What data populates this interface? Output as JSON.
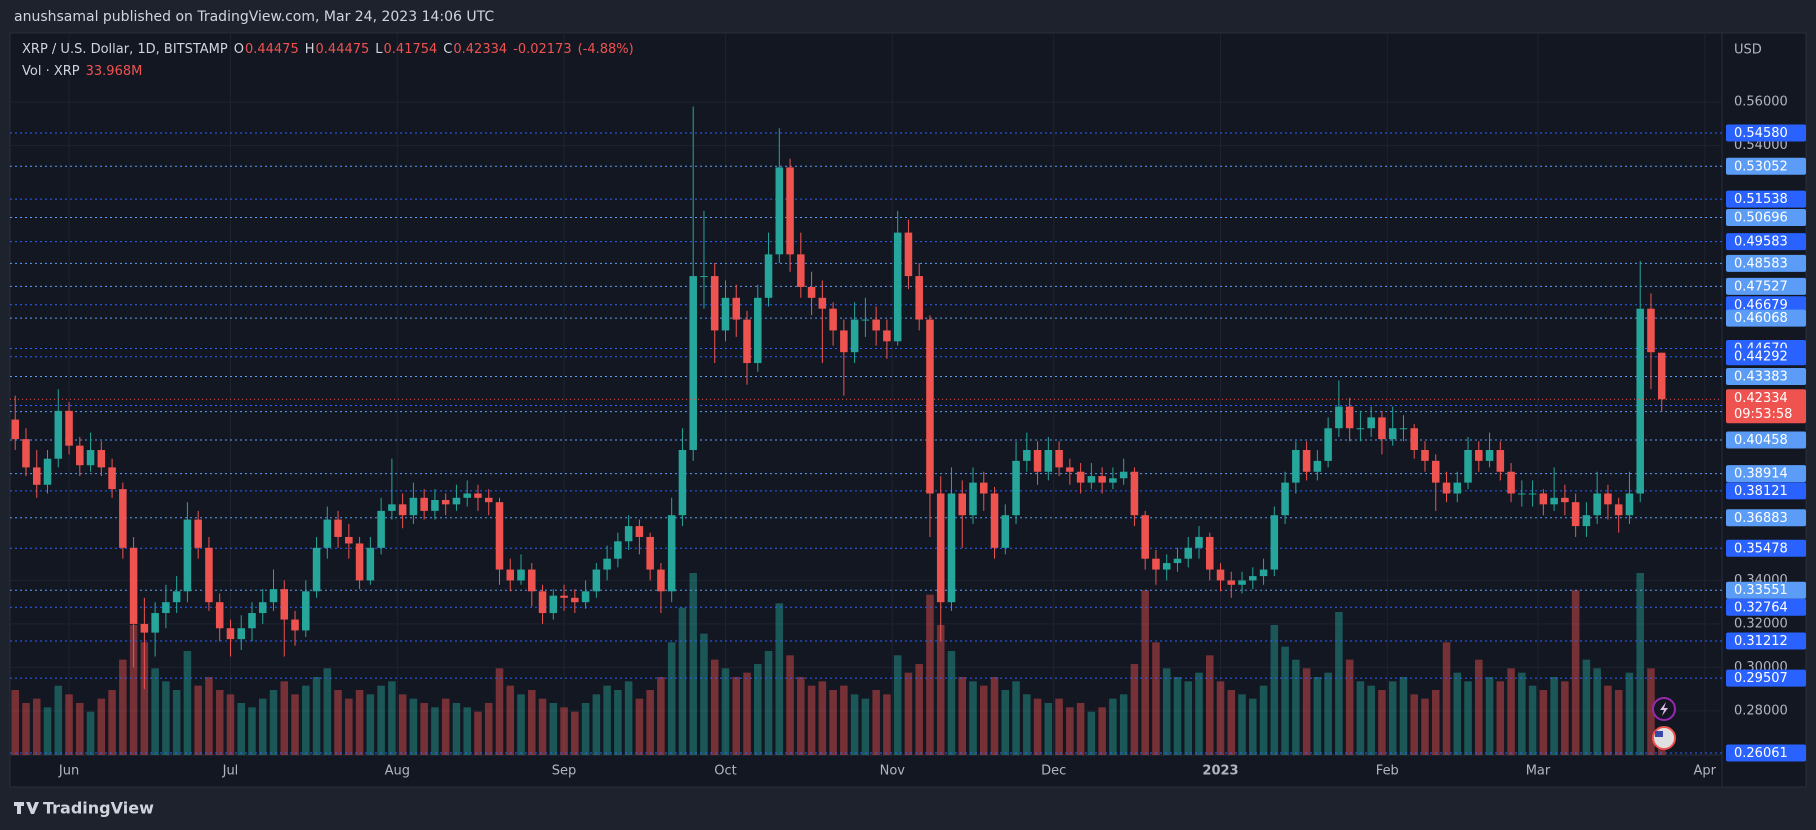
{
  "header": {
    "publisher": "anushsamal published on TradingView.com, Mar 24, 2023 14:06 UTC"
  },
  "footer": {
    "brand": "TradingView"
  },
  "chart_data": {
    "type": "candlestick",
    "legend": {
      "symbol": "XRP / U.S. Dollar, 1D, BITSTAMP",
      "open_label": "O",
      "open": 0.44475,
      "high_label": "H",
      "high": 0.44475,
      "low_label": "L",
      "low": 0.41754,
      "close_label": "C",
      "close": 0.42334,
      "change": -0.02173,
      "change_pct": {
        "value": -4.88,
        "label": "(-4.88%)"
      },
      "volume_label": "Vol · XRP",
      "volume": {
        "value": 33.968,
        "label": "33.968M"
      }
    },
    "currency": "USD",
    "last_price": 0.42334,
    "countdown": "09:53:58",
    "up_color": "#26a69a",
    "down_color": "#ef5350",
    "xlim": [
      -0.3,
      158.6
    ],
    "xticks": [
      {
        "value": 5,
        "label": "Jun"
      },
      {
        "value": 20,
        "label": "Jul"
      },
      {
        "value": 35.5,
        "label": "Aug"
      },
      {
        "value": 51,
        "label": "Sep"
      },
      {
        "value": 66,
        "label": "Oct"
      },
      {
        "value": 81.5,
        "label": "Nov"
      },
      {
        "value": 96.5,
        "label": "Dec"
      },
      {
        "value": 112,
        "label": "2023"
      },
      {
        "value": 127.5,
        "label": "Feb"
      },
      {
        "value": 141.5,
        "label": "Mar"
      },
      {
        "value": 157,
        "label": "Apr"
      }
    ],
    "ylim": [
      0.2597,
      0.5909
    ],
    "yticks": [
      {
        "value": 0.28,
        "label": "0.28000"
      },
      {
        "value": 0.3,
        "label": "0.30000"
      },
      {
        "value": 0.32,
        "label": "0.32000"
      },
      {
        "value": 0.34,
        "label": "0.34000"
      },
      {
        "value": 0.54,
        "label": "0.54000"
      },
      {
        "value": 0.56,
        "label": "0.56000"
      }
    ],
    "grid": true,
    "price_levels": [
      {
        "value": 0.5458,
        "label": "0.54580",
        "color": "#2962ff"
      },
      {
        "value": 0.53052,
        "label": "0.53052",
        "color": "#5b9cf6"
      },
      {
        "value": 0.51538,
        "label": "0.51538",
        "color": "#2962ff"
      },
      {
        "value": 0.50696,
        "label": "0.50696",
        "color": "#5b9cf6"
      },
      {
        "value": 0.49583,
        "label": "0.49583",
        "color": "#2962ff"
      },
      {
        "value": 0.48583,
        "label": "0.48583",
        "color": "#5b9cf6"
      },
      {
        "value": 0.47527,
        "label": "0.47527",
        "color": "#5b9cf6"
      },
      {
        "value": 0.46679,
        "label": "0.46679",
        "color": "#2962ff"
      },
      {
        "value": 0.46068,
        "label": "0.46068",
        "color": "#5b9cf6"
      },
      {
        "value": 0.4467,
        "label": "0.44670",
        "color": "#2962ff"
      },
      {
        "value": 0.44292,
        "label": "0.44292",
        "color": "#2962ff"
      },
      {
        "value": 0.43383,
        "label": "0.43383",
        "color": "#5b9cf6"
      },
      {
        "value": 0.42048,
        "label": "0.42048",
        "color": "#2962ff"
      },
      {
        "value": 0.41765,
        "label": "0.41765",
        "color": "#5b9cf6"
      },
      {
        "value": 0.40458,
        "label": "0.40458",
        "color": "#5b9cf6"
      },
      {
        "value": 0.38914,
        "label": "0.38914",
        "color": "#5b9cf6"
      },
      {
        "value": 0.38121,
        "label": "0.38121",
        "color": "#2962ff"
      },
      {
        "value": 0.36883,
        "label": "0.36883",
        "color": "#5b9cf6"
      },
      {
        "value": 0.35478,
        "label": "0.35478",
        "color": "#2962ff"
      },
      {
        "value": 0.33551,
        "label": "0.33551",
        "color": "#5b9cf6"
      },
      {
        "value": 0.32764,
        "label": "0.32764",
        "color": "#2962ff"
      },
      {
        "value": 0.31212,
        "label": "0.31212",
        "color": "#2962ff"
      },
      {
        "value": 0.29507,
        "label": "0.29507",
        "color": "#2962ff"
      },
      {
        "value": 0.26061,
        "label": "0.26061",
        "color": "#2962ff"
      }
    ],
    "candles": [
      [
        0.414,
        0.425,
        0.4,
        0.405
      ],
      [
        0.405,
        0.41,
        0.388,
        0.392
      ],
      [
        0.392,
        0.4,
        0.378,
        0.384
      ],
      [
        0.384,
        0.4,
        0.38,
        0.396
      ],
      [
        0.396,
        0.428,
        0.392,
        0.418
      ],
      [
        0.418,
        0.422,
        0.398,
        0.402
      ],
      [
        0.402,
        0.406,
        0.388,
        0.393
      ],
      [
        0.393,
        0.408,
        0.39,
        0.4
      ],
      [
        0.4,
        0.404,
        0.388,
        0.392
      ],
      [
        0.392,
        0.396,
        0.378,
        0.382
      ],
      [
        0.382,
        0.385,
        0.35,
        0.355
      ],
      [
        0.355,
        0.36,
        0.3,
        0.32
      ],
      [
        0.32,
        0.332,
        0.29,
        0.316
      ],
      [
        0.316,
        0.33,
        0.305,
        0.325
      ],
      [
        0.325,
        0.338,
        0.318,
        0.33
      ],
      [
        0.33,
        0.342,
        0.325,
        0.335
      ],
      [
        0.335,
        0.376,
        0.33,
        0.368
      ],
      [
        0.368,
        0.372,
        0.35,
        0.355
      ],
      [
        0.355,
        0.36,
        0.326,
        0.33
      ],
      [
        0.33,
        0.334,
        0.312,
        0.318
      ],
      [
        0.318,
        0.322,
        0.305,
        0.313
      ],
      [
        0.313,
        0.324,
        0.308,
        0.318
      ],
      [
        0.318,
        0.33,
        0.312,
        0.325
      ],
      [
        0.325,
        0.336,
        0.32,
        0.33
      ],
      [
        0.33,
        0.345,
        0.326,
        0.336
      ],
      [
        0.336,
        0.34,
        0.305,
        0.322
      ],
      [
        0.322,
        0.326,
        0.31,
        0.317
      ],
      [
        0.317,
        0.34,
        0.314,
        0.335
      ],
      [
        0.335,
        0.36,
        0.332,
        0.355
      ],
      [
        0.355,
        0.374,
        0.35,
        0.368
      ],
      [
        0.368,
        0.372,
        0.355,
        0.36
      ],
      [
        0.36,
        0.366,
        0.35,
        0.357
      ],
      [
        0.357,
        0.36,
        0.336,
        0.34
      ],
      [
        0.34,
        0.36,
        0.338,
        0.355
      ],
      [
        0.355,
        0.378,
        0.352,
        0.372
      ],
      [
        0.372,
        0.396,
        0.368,
        0.375
      ],
      [
        0.375,
        0.38,
        0.364,
        0.37
      ],
      [
        0.37,
        0.385,
        0.366,
        0.378
      ],
      [
        0.378,
        0.382,
        0.368,
        0.372
      ],
      [
        0.372,
        0.382,
        0.368,
        0.377
      ],
      [
        0.377,
        0.38,
        0.37,
        0.375
      ],
      [
        0.375,
        0.384,
        0.372,
        0.378
      ],
      [
        0.378,
        0.386,
        0.374,
        0.38
      ],
      [
        0.38,
        0.384,
        0.372,
        0.378
      ],
      [
        0.378,
        0.382,
        0.37,
        0.376
      ],
      [
        0.376,
        0.378,
        0.338,
        0.345
      ],
      [
        0.345,
        0.35,
        0.335,
        0.34
      ],
      [
        0.34,
        0.352,
        0.338,
        0.345
      ],
      [
        0.345,
        0.348,
        0.328,
        0.335
      ],
      [
        0.335,
        0.338,
        0.32,
        0.325
      ],
      [
        0.325,
        0.336,
        0.322,
        0.333
      ],
      [
        0.333,
        0.338,
        0.326,
        0.332
      ],
      [
        0.332,
        0.336,
        0.325,
        0.33
      ],
      [
        0.33,
        0.34,
        0.327,
        0.335
      ],
      [
        0.335,
        0.348,
        0.332,
        0.345
      ],
      [
        0.345,
        0.356,
        0.34,
        0.35
      ],
      [
        0.35,
        0.362,
        0.346,
        0.358
      ],
      [
        0.358,
        0.37,
        0.354,
        0.365
      ],
      [
        0.365,
        0.368,
        0.352,
        0.36
      ],
      [
        0.36,
        0.362,
        0.34,
        0.345
      ],
      [
        0.345,
        0.348,
        0.325,
        0.335
      ],
      [
        0.335,
        0.378,
        0.33,
        0.37
      ],
      [
        0.37,
        0.41,
        0.365,
        0.4
      ],
      [
        0.4,
        0.558,
        0.395,
        0.48
      ],
      [
        0.48,
        0.51,
        0.465,
        0.48
      ],
      [
        0.48,
        0.486,
        0.44,
        0.455
      ],
      [
        0.455,
        0.478,
        0.45,
        0.47
      ],
      [
        0.47,
        0.476,
        0.452,
        0.46
      ],
      [
        0.46,
        0.464,
        0.43,
        0.44
      ],
      [
        0.44,
        0.476,
        0.436,
        0.47
      ],
      [
        0.47,
        0.5,
        0.466,
        0.49
      ],
      [
        0.49,
        0.548,
        0.486,
        0.53
      ],
      [
        0.53,
        0.534,
        0.482,
        0.49
      ],
      [
        0.49,
        0.5,
        0.47,
        0.475
      ],
      [
        0.475,
        0.482,
        0.462,
        0.47
      ],
      [
        0.47,
        0.478,
        0.44,
        0.465
      ],
      [
        0.465,
        0.468,
        0.448,
        0.455
      ],
      [
        0.455,
        0.46,
        0.425,
        0.445
      ],
      [
        0.445,
        0.468,
        0.44,
        0.46
      ],
      [
        0.46,
        0.47,
        0.452,
        0.46
      ],
      [
        0.46,
        0.466,
        0.448,
        0.455
      ],
      [
        0.455,
        0.46,
        0.442,
        0.45
      ],
      [
        0.45,
        0.51,
        0.448,
        0.5
      ],
      [
        0.5,
        0.506,
        0.474,
        0.48
      ],
      [
        0.48,
        0.486,
        0.455,
        0.46
      ],
      [
        0.46,
        0.462,
        0.36,
        0.38
      ],
      [
        0.38,
        0.388,
        0.312,
        0.33
      ],
      [
        0.33,
        0.392,
        0.326,
        0.38
      ],
      [
        0.38,
        0.386,
        0.355,
        0.37
      ],
      [
        0.37,
        0.392,
        0.366,
        0.385
      ],
      [
        0.385,
        0.39,
        0.372,
        0.38
      ],
      [
        0.38,
        0.383,
        0.35,
        0.355
      ],
      [
        0.355,
        0.375,
        0.352,
        0.37
      ],
      [
        0.37,
        0.404,
        0.366,
        0.395
      ],
      [
        0.395,
        0.408,
        0.39,
        0.4
      ],
      [
        0.4,
        0.404,
        0.384,
        0.39
      ],
      [
        0.39,
        0.406,
        0.386,
        0.4
      ],
      [
        0.4,
        0.404,
        0.388,
        0.392
      ],
      [
        0.392,
        0.396,
        0.384,
        0.39
      ],
      [
        0.39,
        0.394,
        0.38,
        0.385
      ],
      [
        0.385,
        0.394,
        0.382,
        0.388
      ],
      [
        0.388,
        0.392,
        0.38,
        0.385
      ],
      [
        0.385,
        0.392,
        0.382,
        0.387
      ],
      [
        0.387,
        0.396,
        0.384,
        0.39
      ],
      [
        0.39,
        0.392,
        0.365,
        0.37
      ],
      [
        0.37,
        0.372,
        0.345,
        0.35
      ],
      [
        0.35,
        0.354,
        0.338,
        0.345
      ],
      [
        0.345,
        0.352,
        0.34,
        0.348
      ],
      [
        0.348,
        0.355,
        0.344,
        0.35
      ],
      [
        0.35,
        0.36,
        0.346,
        0.355
      ],
      [
        0.355,
        0.365,
        0.35,
        0.36
      ],
      [
        0.36,
        0.362,
        0.34,
        0.345
      ],
      [
        0.345,
        0.348,
        0.335,
        0.34
      ],
      [
        0.34,
        0.344,
        0.332,
        0.338
      ],
      [
        0.338,
        0.344,
        0.334,
        0.34
      ],
      [
        0.34,
        0.346,
        0.336,
        0.342
      ],
      [
        0.342,
        0.35,
        0.338,
        0.345
      ],
      [
        0.345,
        0.374,
        0.342,
        0.37
      ],
      [
        0.37,
        0.39,
        0.366,
        0.385
      ],
      [
        0.385,
        0.404,
        0.38,
        0.4
      ],
      [
        0.4,
        0.404,
        0.386,
        0.39
      ],
      [
        0.39,
        0.4,
        0.386,
        0.395
      ],
      [
        0.395,
        0.415,
        0.392,
        0.41
      ],
      [
        0.41,
        0.432,
        0.406,
        0.42
      ],
      [
        0.42,
        0.424,
        0.404,
        0.41
      ],
      [
        0.41,
        0.418,
        0.404,
        0.41
      ],
      [
        0.41,
        0.42,
        0.406,
        0.415
      ],
      [
        0.415,
        0.418,
        0.398,
        0.405
      ],
      [
        0.405,
        0.42,
        0.402,
        0.41
      ],
      [
        0.41,
        0.416,
        0.404,
        0.41
      ],
      [
        0.41,
        0.412,
        0.396,
        0.4
      ],
      [
        0.4,
        0.404,
        0.39,
        0.395
      ],
      [
        0.395,
        0.398,
        0.372,
        0.385
      ],
      [
        0.385,
        0.39,
        0.376,
        0.38
      ],
      [
        0.38,
        0.39,
        0.376,
        0.385
      ],
      [
        0.385,
        0.406,
        0.382,
        0.4
      ],
      [
        0.4,
        0.404,
        0.39,
        0.395
      ],
      [
        0.395,
        0.408,
        0.392,
        0.4
      ],
      [
        0.4,
        0.404,
        0.386,
        0.39
      ],
      [
        0.39,
        0.394,
        0.376,
        0.38
      ],
      [
        0.38,
        0.386,
        0.374,
        0.38
      ],
      [
        0.38,
        0.386,
        0.374,
        0.38
      ],
      [
        0.38,
        0.382,
        0.37,
        0.375
      ],
      [
        0.375,
        0.392,
        0.372,
        0.378
      ],
      [
        0.378,
        0.384,
        0.37,
        0.376
      ],
      [
        0.376,
        0.38,
        0.36,
        0.365
      ],
      [
        0.365,
        0.376,
        0.36,
        0.37
      ],
      [
        0.37,
        0.39,
        0.366,
        0.38
      ],
      [
        0.38,
        0.384,
        0.368,
        0.375
      ],
      [
        0.375,
        0.378,
        0.362,
        0.37
      ],
      [
        0.37,
        0.39,
        0.366,
        0.38
      ],
      [
        0.38,
        0.487,
        0.376,
        0.465
      ],
      [
        0.465,
        0.472,
        0.428,
        0.445
      ],
      [
        0.44475,
        0.44475,
        0.41754,
        0.42334
      ]
    ],
    "volumes": [
      150,
      120,
      130,
      110,
      160,
      140,
      120,
      100,
      130,
      150,
      220,
      300,
      260,
      200,
      170,
      150,
      240,
      160,
      180,
      150,
      140,
      120,
      110,
      130,
      150,
      170,
      140,
      160,
      180,
      200,
      150,
      130,
      150,
      140,
      160,
      170,
      140,
      130,
      120,
      110,
      130,
      120,
      110,
      100,
      120,
      200,
      160,
      140,
      150,
      130,
      120,
      110,
      100,
      120,
      140,
      160,
      150,
      170,
      130,
      150,
      180,
      260,
      340,
      420,
      280,
      220,
      200,
      180,
      190,
      210,
      240,
      350,
      230,
      180,
      160,
      170,
      150,
      160,
      140,
      130,
      150,
      140,
      230,
      190,
      210,
      370,
      300,
      240,
      180,
      170,
      160,
      180,
      150,
      170,
      140,
      130,
      120,
      130,
      110,
      120,
      100,
      110,
      130,
      140,
      210,
      380,
      260,
      200,
      180,
      170,
      190,
      230,
      170,
      150,
      140,
      130,
      160,
      300,
      250,
      220,
      200,
      180,
      190,
      330,
      220,
      170,
      160,
      150,
      170,
      180,
      140,
      130,
      150,
      260,
      190,
      170,
      220,
      180,
      170,
      200,
      190,
      160,
      150,
      180,
      170,
      380,
      220,
      200,
      160,
      150,
      190,
      420,
      200,
      33.968
    ]
  }
}
